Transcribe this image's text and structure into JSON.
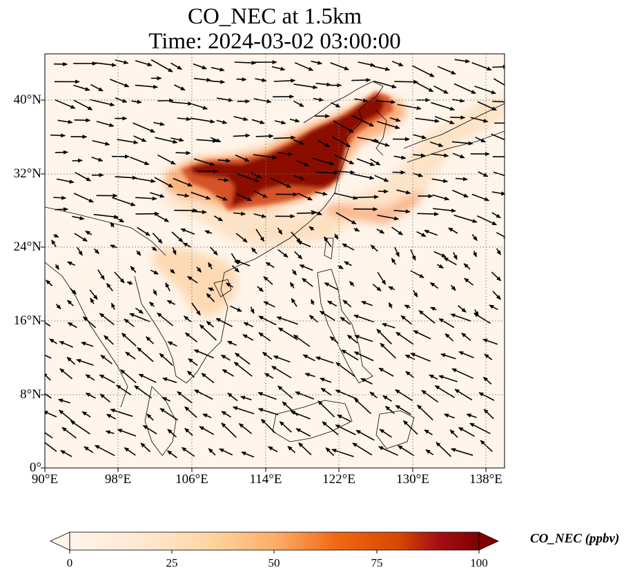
{
  "title_line1": "CO_NEC at 1.5km",
  "title_line2": "Time: 2024-03-02 03:00:00",
  "lat_ticks": [
    "0°",
    "8°N",
    "16°N",
    "24°N",
    "32°N",
    "40°N"
  ],
  "lon_ticks": [
    "90°E",
    "98°E",
    "106°E",
    "114°E",
    "122°E",
    "130°E",
    "138°E"
  ],
  "colorbar": {
    "label": "CO_NEC (ppbv)",
    "ticks": [
      "0",
      "25",
      "50",
      "75",
      "100"
    ],
    "colormap": [
      "#fff5eb",
      "#fdd49e",
      "#fdae6b",
      "#f16913",
      "#d94801",
      "#a50f15",
      "#7f0000"
    ]
  },
  "map": {
    "lon_range": [
      90,
      140
    ],
    "lat_range": [
      0,
      45
    ],
    "background_color": "#fff5eb",
    "gridlines": true
  }
}
